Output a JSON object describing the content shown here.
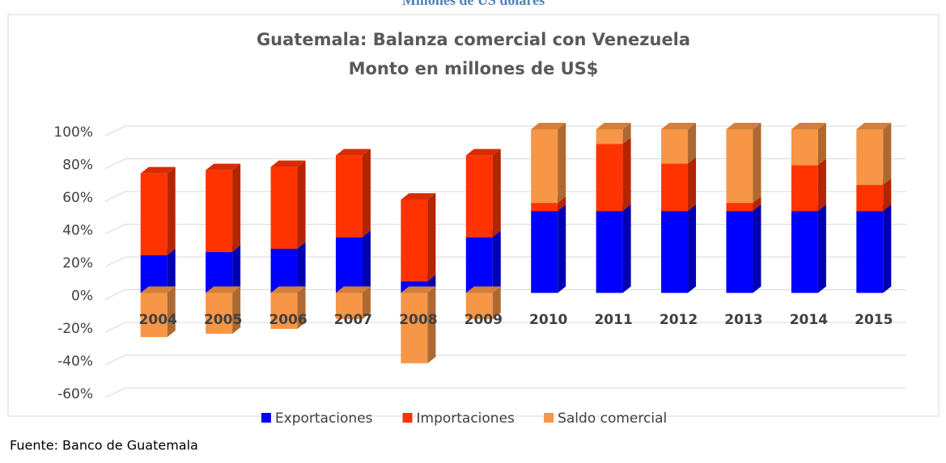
{
  "chart_data": {
    "type": "bar",
    "header": "Millones de US dólares",
    "title": "Guatemala: Balanza comercial con Venezuela",
    "subtitle": "Monto en millones de US$",
    "source": "Fuente: Banco de Guatemala",
    "stacked": true,
    "categories": [
      "2004",
      "2005",
      "2006",
      "2007",
      "2008",
      "2009",
      "2010",
      "2011",
      "2012",
      "2013",
      "2014",
      "2015"
    ],
    "series": [
      {
        "name": "Exportaciones",
        "color": "#0000ff",
        "values": [
          23,
          25,
          27,
          34,
          7,
          34,
          50,
          50,
          50,
          50,
          50,
          50
        ]
      },
      {
        "name": "Importaciones",
        "color": "#ff3300",
        "values": [
          50,
          50,
          50,
          50,
          50,
          50,
          5,
          41,
          29,
          5,
          28,
          16
        ]
      },
      {
        "name": "Saldo comercial",
        "color": "#f79646",
        "values": [
          -27,
          -25,
          -22,
          -16,
          -43,
          -16,
          45,
          9,
          21,
          45,
          22,
          34
        ]
      }
    ],
    "ylim": [
      -60,
      100
    ],
    "yticks": [
      {
        "value": -60,
        "label": "-60%"
      },
      {
        "value": -40,
        "label": "-40%"
      },
      {
        "value": -20,
        "label": "-20%"
      },
      {
        "value": 0,
        "label": "0%"
      },
      {
        "value": 20,
        "label": "20%"
      },
      {
        "value": 40,
        "label": "40%"
      },
      {
        "value": 60,
        "label": "60%"
      },
      {
        "value": 80,
        "label": "80%"
      },
      {
        "value": 100,
        "label": "100%"
      }
    ],
    "grid": true,
    "legend": "bottom"
  }
}
